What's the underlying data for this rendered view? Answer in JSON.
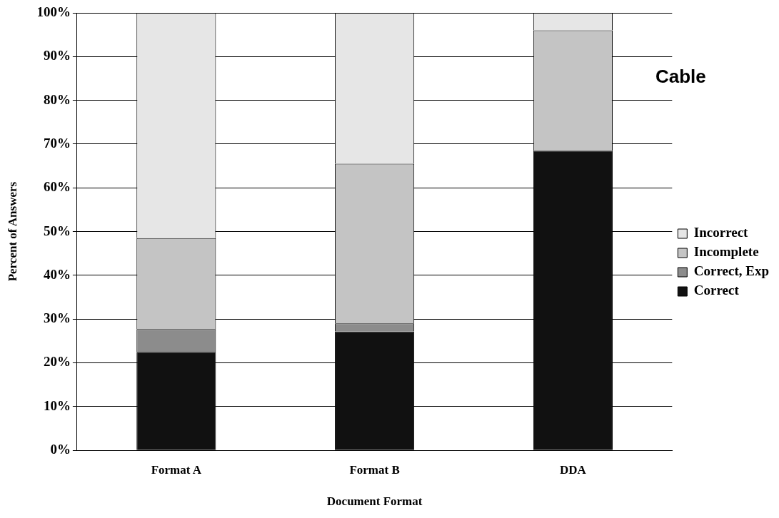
{
  "chart_data": {
    "type": "bar",
    "title": "Cable",
    "xlabel": "Document Format",
    "ylabel": "Percent of Answers",
    "categories": [
      "Format A",
      "Format B",
      "DDA"
    ],
    "stacked": true,
    "series": [
      {
        "name": "Correct",
        "color": "#111111",
        "values": [
          22.5,
          27.2,
          68.5
        ]
      },
      {
        "name": "Correct, Exp",
        "color": "#8c8c8c",
        "values": [
          5.2,
          1.8,
          0
        ]
      },
      {
        "name": "Incomplete",
        "color": "#c4c4c4",
        "values": [
          20.8,
          36.5,
          27.5
        ]
      },
      {
        "name": "Incorrect",
        "color": "#e6e6e6",
        "values": [
          51.5,
          34.5,
          4
        ]
      }
    ],
    "ylim": [
      0,
      100
    ],
    "yticks": [
      {
        "value": 0,
        "label": "0%"
      },
      {
        "value": 10,
        "label": "10%"
      },
      {
        "value": 20,
        "label": "20%"
      },
      {
        "value": 30,
        "label": "30%"
      },
      {
        "value": 40,
        "label": "40%"
      },
      {
        "value": 50,
        "label": "50%"
      },
      {
        "value": 60,
        "label": "60%"
      },
      {
        "value": 70,
        "label": "70%"
      },
      {
        "value": 80,
        "label": "80%"
      },
      {
        "value": 90,
        "label": "90%"
      },
      {
        "value": 100,
        "label": "100%"
      }
    ],
    "grid": "y",
    "legend": "right"
  }
}
